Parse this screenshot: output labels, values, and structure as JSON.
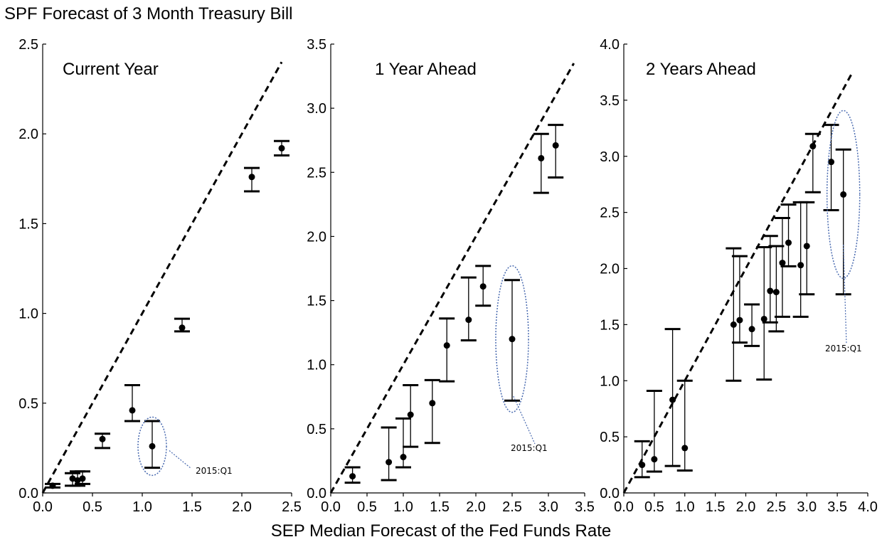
{
  "title": "SPF Forecast of 3 Month Treasury Bill",
  "xlabel": "SEP Median Forecast of the Fed Funds Rate",
  "annotation_label": "2015:Q1",
  "colors": {
    "marker": "#000000",
    "reference_line": "#000000",
    "highlight": "#4a6bb0"
  },
  "chart_data": [
    {
      "type": "scatter",
      "title": "Current Year",
      "xlim": [
        0,
        2.5
      ],
      "ylim": [
        0,
        2.5
      ],
      "x_ticks": [
        "0.0",
        "0.5",
        "1.0",
        "1.5",
        "2.0",
        "2.5"
      ],
      "y_ticks": [
        "0.0",
        "0.5",
        "1.0",
        "1.5",
        "2.0",
        "2.5"
      ],
      "reference_line": {
        "style": "dashed",
        "from": [
          0,
          0
        ],
        "to": [
          2.4,
          2.4
        ]
      },
      "points": [
        {
          "x": 0.1,
          "y": 0.04,
          "low": 0.03,
          "high": 0.05
        },
        {
          "x": 0.3,
          "y": 0.08,
          "low": 0.04,
          "high": 0.11
        },
        {
          "x": 0.35,
          "y": 0.07,
          "low": 0.04,
          "high": 0.12
        },
        {
          "x": 0.4,
          "y": 0.08,
          "low": 0.05,
          "high": 0.12
        },
        {
          "x": 0.6,
          "y": 0.3,
          "low": 0.25,
          "high": 0.33
        },
        {
          "x": 0.9,
          "y": 0.46,
          "low": 0.4,
          "high": 0.6
        },
        {
          "x": 1.1,
          "y": 0.26,
          "low": 0.14,
          "high": 0.4
        },
        {
          "x": 1.4,
          "y": 0.92,
          "low": 0.9,
          "high": 0.97
        },
        {
          "x": 2.1,
          "y": 1.76,
          "low": 1.68,
          "high": 1.81
        },
        {
          "x": 2.4,
          "y": 1.92,
          "low": 1.88,
          "high": 1.96
        }
      ],
      "highlight": {
        "label": "2015:Q1",
        "x": 1.1,
        "y": 0.26
      }
    },
    {
      "type": "scatter",
      "title": "1 Year Ahead",
      "xlim": [
        0,
        3.5
      ],
      "ylim": [
        0,
        3.5
      ],
      "x_ticks": [
        "0.0",
        "0.5",
        "1.0",
        "1.5",
        "2.0",
        "2.5",
        "3.0",
        "3.5"
      ],
      "y_ticks": [
        "0.0",
        "0.5",
        "1.0",
        "1.5",
        "2.0",
        "2.5",
        "3.0",
        "3.5"
      ],
      "reference_line": {
        "style": "dashed",
        "from": [
          0,
          0
        ],
        "to": [
          3.35,
          3.35
        ]
      },
      "points": [
        {
          "x": 0.3,
          "y": 0.13,
          "low": 0.08,
          "high": 0.2
        },
        {
          "x": 0.8,
          "y": 0.24,
          "low": 0.1,
          "high": 0.51
        },
        {
          "x": 1.0,
          "y": 0.28,
          "low": 0.2,
          "high": 0.58
        },
        {
          "x": 1.1,
          "y": 0.61,
          "low": 0.36,
          "high": 0.84
        },
        {
          "x": 1.4,
          "y": 0.7,
          "low": 0.39,
          "high": 0.88
        },
        {
          "x": 1.6,
          "y": 1.15,
          "low": 0.87,
          "high": 1.36
        },
        {
          "x": 1.9,
          "y": 1.35,
          "low": 1.19,
          "high": 1.68
        },
        {
          "x": 2.1,
          "y": 1.61,
          "low": 1.46,
          "high": 1.77
        },
        {
          "x": 2.5,
          "y": 1.2,
          "low": 0.72,
          "high": 1.66
        },
        {
          "x": 2.9,
          "y": 2.61,
          "low": 2.34,
          "high": 2.8
        },
        {
          "x": 3.1,
          "y": 2.71,
          "low": 2.46,
          "high": 2.87
        }
      ],
      "highlight": {
        "label": "2015:Q1",
        "x": 2.5,
        "y": 1.2
      }
    },
    {
      "type": "scatter",
      "title": "2 Years Ahead",
      "xlim": [
        0,
        4.0
      ],
      "ylim": [
        0,
        4.0
      ],
      "x_ticks": [
        "0.0",
        "0.5",
        "1.0",
        "1.5",
        "2.0",
        "2.5",
        "3.0",
        "3.5",
        "4.0"
      ],
      "y_ticks": [
        "0.0",
        "0.5",
        "1.0",
        "1.5",
        "2.0",
        "2.5",
        "3.0",
        "3.5",
        "4.0"
      ],
      "reference_line": {
        "style": "dashed",
        "from": [
          0,
          0
        ],
        "to": [
          3.75,
          3.75
        ]
      },
      "points": [
        {
          "x": 0.3,
          "y": 0.25,
          "low": 0.14,
          "high": 0.46
        },
        {
          "x": 0.5,
          "y": 0.3,
          "low": 0.19,
          "high": 0.91
        },
        {
          "x": 0.8,
          "y": 0.83,
          "low": 0.24,
          "high": 1.46
        },
        {
          "x": 1.0,
          "y": 0.4,
          "low": 0.2,
          "high": 1.0
        },
        {
          "x": 1.8,
          "y": 1.5,
          "low": 1.0,
          "high": 2.18
        },
        {
          "x": 1.9,
          "y": 1.54,
          "low": 1.34,
          "high": 2.11
        },
        {
          "x": 2.1,
          "y": 1.46,
          "low": 1.31,
          "high": 1.68
        },
        {
          "x": 2.3,
          "y": 1.55,
          "low": 1.01,
          "high": 2.19
        },
        {
          "x": 2.4,
          "y": 1.8,
          "low": 1.52,
          "high": 2.29
        },
        {
          "x": 2.5,
          "y": 1.79,
          "low": 1.44,
          "high": 2.2
        },
        {
          "x": 2.6,
          "y": 2.05,
          "low": 1.57,
          "high": 2.45
        },
        {
          "x": 2.7,
          "y": 2.23,
          "low": 2.02,
          "high": 2.57
        },
        {
          "x": 2.9,
          "y": 2.03,
          "low": 1.57,
          "high": 2.59
        },
        {
          "x": 3.0,
          "y": 2.2,
          "low": 1.77,
          "high": 2.59
        },
        {
          "x": 3.1,
          "y": 3.09,
          "low": 2.68,
          "high": 3.2
        },
        {
          "x": 3.4,
          "y": 2.95,
          "low": 2.52,
          "high": 3.28
        },
        {
          "x": 3.6,
          "y": 2.66,
          "low": 1.77,
          "high": 3.06
        }
      ],
      "highlight": {
        "label": "2015:Q1",
        "x": 3.6,
        "y": 2.66
      }
    }
  ]
}
